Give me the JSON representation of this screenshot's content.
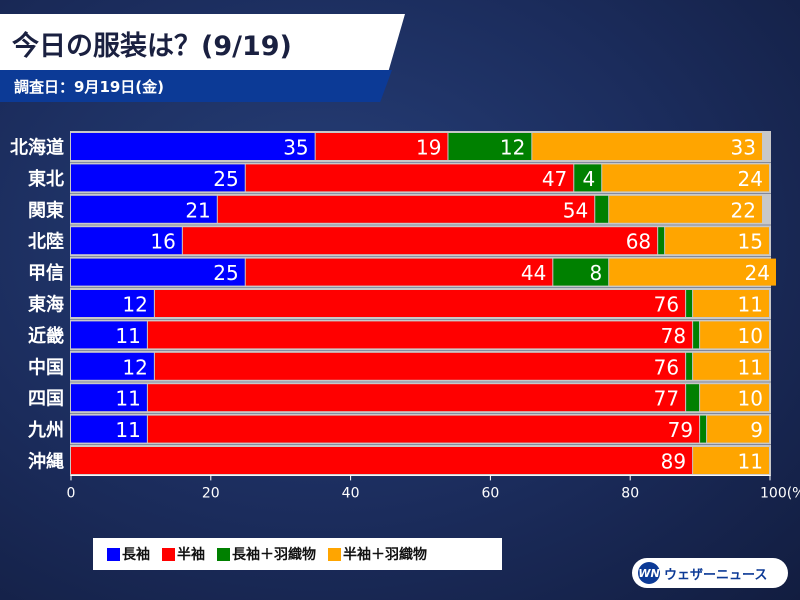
{
  "header": {
    "title": "今日の服装は？(9/19)",
    "subtitle": "調査日：9月19日(金)"
  },
  "logo": {
    "mark": "WN",
    "text": "ウェザーニュース"
  },
  "chart_data": {
    "type": "bar",
    "orientation": "horizontal",
    "stacked": true,
    "title": "今日の服装は？(9/19)",
    "categories": [
      "北海道",
      "東北",
      "関東",
      "北陸",
      "甲信",
      "東海",
      "近畿",
      "中国",
      "四国",
      "九州",
      "沖縄"
    ],
    "series": [
      {
        "name": "長袖",
        "color": "#0000ff",
        "values": [
          35,
          25,
          21,
          16,
          25,
          12,
          11,
          12,
          11,
          11,
          0
        ]
      },
      {
        "name": "半袖",
        "color": "#ff0000",
        "values": [
          19,
          47,
          54,
          68,
          44,
          76,
          78,
          76,
          77,
          79,
          89
        ]
      },
      {
        "name": "長袖＋羽織物",
        "color": "#008000",
        "values": [
          12,
          4,
          2,
          1,
          8,
          1,
          1,
          1,
          2,
          1,
          0
        ]
      },
      {
        "name": "半袖＋羽織物",
        "color": "#ffa500",
        "values": [
          33,
          24,
          22,
          15,
          24,
          11,
          10,
          11,
          10,
          9,
          11
        ]
      }
    ],
    "xlim": [
      0,
      100
    ],
    "xticks": [
      "0",
      "20",
      "40",
      "60",
      "80",
      "100(%)"
    ],
    "legend_position": "bottom"
  }
}
